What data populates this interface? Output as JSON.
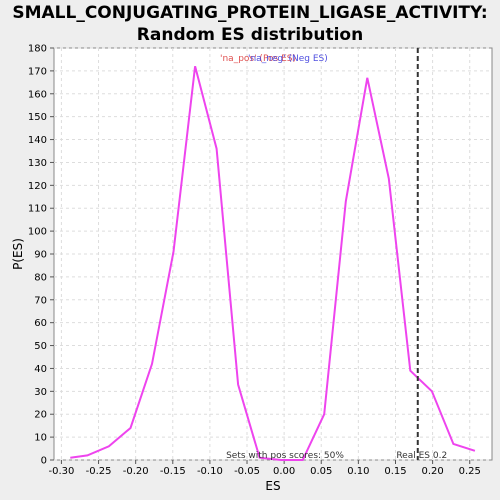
{
  "chart_data": {
    "type": "line",
    "title_line1": "SMALL_CONJUGATING_PROTEIN_LIGASE_ACTIVITY:",
    "title_line2": "Random ES distribution",
    "xlabel": "ES",
    "ylabel": "P(ES)",
    "xlim": [
      -0.31,
      0.28
    ],
    "ylim": [
      0,
      180
    ],
    "xticks": [
      -0.3,
      -0.25,
      -0.2,
      -0.15,
      -0.1,
      -0.05,
      0.0,
      0.05,
      0.1,
      0.15,
      0.2,
      0.25
    ],
    "xtick_labels": [
      "-0.30",
      "-0.25",
      "-0.20",
      "-0.15",
      "-0.10",
      "-0.05",
      "0.00",
      "0.05",
      "0.10",
      "0.15",
      "0.20",
      "0.25"
    ],
    "yticks": [
      0,
      10,
      20,
      30,
      40,
      50,
      60,
      70,
      80,
      90,
      100,
      110,
      120,
      130,
      140,
      150,
      160,
      170,
      180
    ],
    "grid": true,
    "series": [
      {
        "color": "#ee44ee",
        "x": [
          -0.288,
          -0.265,
          -0.236,
          -0.207,
          -0.178,
          -0.149,
          -0.12,
          -0.091,
          -0.062,
          -0.033,
          -0.004,
          0.025,
          0.054,
          0.083,
          0.112,
          0.141,
          0.17,
          0.199,
          0.228,
          0.257
        ],
        "y": [
          1,
          2,
          6,
          14,
          42,
          91,
          172,
          136,
          33,
          1,
          0,
          0,
          20,
          113,
          167,
          123,
          39,
          30,
          7,
          4
        ]
      }
    ],
    "real_es": {
      "x": 0.18,
      "label": "Real ES 0.2",
      "color": "#333333"
    },
    "legend_pos": "na_pos_label",
    "legend_neg": "na_neg_label",
    "legend_pos_text": "'na_pos' (Pos ES)",
    "legend_neg_text": "'na_neg' (Neg ES)",
    "legend_pos_color": "#e05050",
    "legend_neg_color": "#5050e0",
    "footnote": "Sets with pos scores: 50%"
  }
}
